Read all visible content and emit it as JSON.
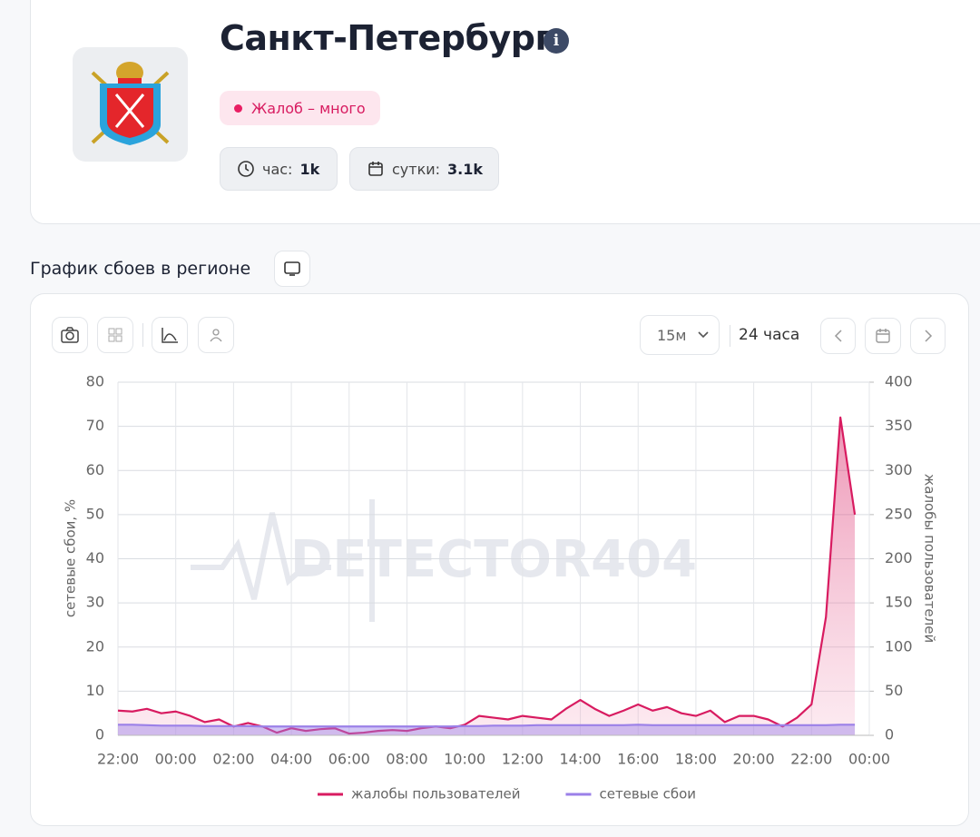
{
  "header": {
    "title": "Санкт-Петербург",
    "status": "Жалоб – много",
    "hour_label": "час:",
    "hour_value": "1k",
    "day_label": "сутки:",
    "day_value": "3.1k"
  },
  "section_title": "График сбоев в регионе",
  "toolbar": {
    "interval": "15м",
    "range": "24 часа"
  },
  "chart_data": {
    "type": "line",
    "watermark": "DETECTOR404",
    "y_label": "сетевые сбои, %",
    "y2_label": "жалобы пользователей",
    "categories": [
      "22:00",
      null,
      null,
      null,
      "00:00",
      null,
      null,
      null,
      "02:00",
      null,
      null,
      null,
      "04:00",
      null,
      null,
      null,
      "06:00",
      null,
      null,
      null,
      "08:00",
      null,
      null,
      null,
      "10:00",
      null,
      null,
      null,
      "12:00",
      null,
      null,
      null,
      "14:00",
      null,
      null,
      null,
      "16:00",
      null,
      null,
      null,
      "18:00",
      null,
      null,
      null,
      "20:00",
      null,
      null,
      null,
      "22:00",
      null,
      null,
      null,
      "00:00"
    ],
    "series": [
      {
        "name": "жалобы пользователей",
        "color": "#d81b60",
        "axis": "y2",
        "values": [
          28,
          27,
          30,
          25,
          27,
          22,
          15,
          18,
          10,
          14,
          10,
          3,
          8,
          5,
          7,
          8,
          2,
          3,
          5,
          6,
          5,
          8,
          10,
          8,
          12,
          22,
          20,
          18,
          22,
          20,
          18,
          30,
          40,
          30,
          22,
          28,
          35,
          28,
          32,
          25,
          22,
          28,
          15,
          22,
          22,
          18,
          10,
          20,
          35,
          134,
          360,
          250,
          null
        ]
      },
      {
        "name": "сетевые сбои",
        "color": "#9b80e8",
        "values": [
          2.4,
          2.4,
          2.3,
          2.2,
          2.2,
          2.2,
          2.1,
          2.1,
          2.1,
          2.1,
          2,
          2,
          2,
          2,
          2,
          2,
          2,
          2,
          2,
          2,
          2,
          2,
          2,
          2,
          2.1,
          2.1,
          2.2,
          2.2,
          2.2,
          2.3,
          2.3,
          2.3,
          2.3,
          2.3,
          2.3,
          2.3,
          2.4,
          2.3,
          2.3,
          2.3,
          2.3,
          2.3,
          2.3,
          2.3,
          2.3,
          2.3,
          2.3,
          2.3,
          2.3,
          2.3,
          2.4,
          2.4,
          null
        ]
      }
    ],
    "ylim": [
      0,
      80
    ],
    "yticks": [
      0,
      10,
      20,
      30,
      40,
      50,
      60,
      70,
      80
    ],
    "y2lim": [
      0,
      400
    ],
    "y2ticks": [
      0,
      50,
      100,
      150,
      200,
      250,
      300,
      350,
      400
    ],
    "grid": true,
    "legend": "bottom"
  }
}
